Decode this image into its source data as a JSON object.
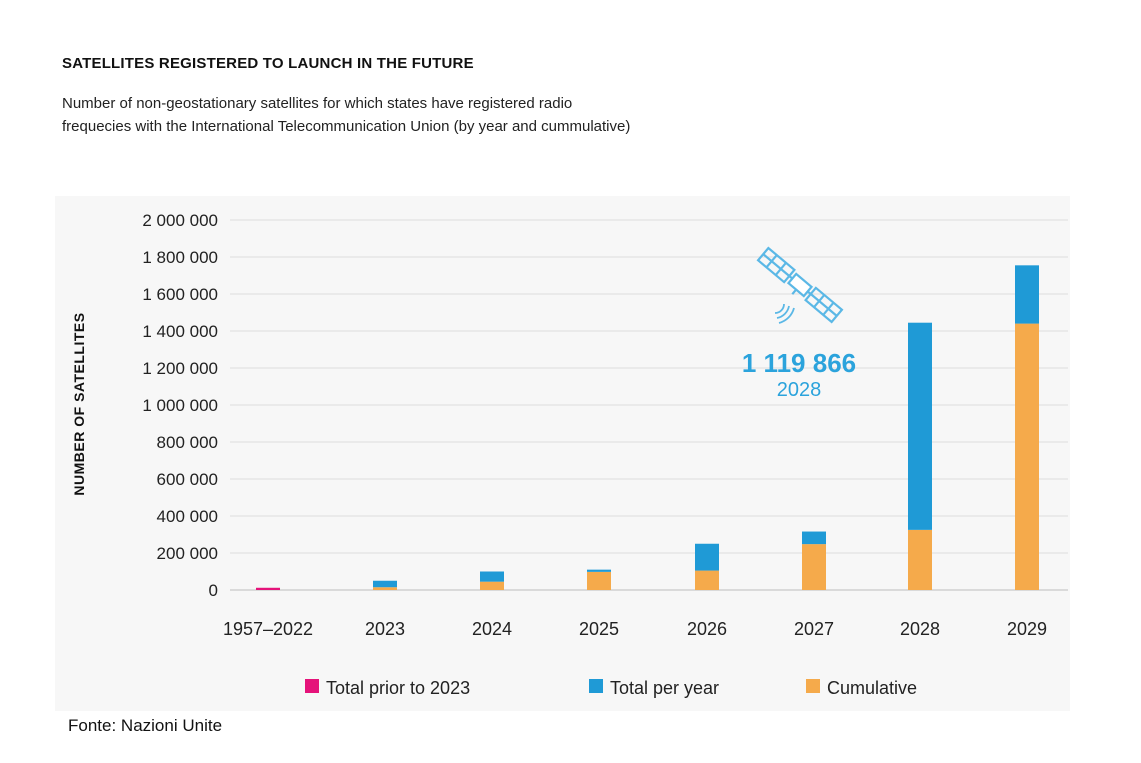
{
  "title": "SATELLITES REGISTERED TO LAUNCH IN THE FUTURE",
  "subtitle_line1": "Number of non-geostationary satellites for which states have registered radio",
  "subtitle_line2": "frequecies with the International Telecommunication Union (by year and cummulative)",
  "source": "Fonte: Nazioni Unite",
  "colors": {
    "prior": "#e5137a",
    "per_year": "#1f9ad6",
    "cumulative": "#f5aa4b"
  },
  "annotation": {
    "value": "1 119 866",
    "year": "2028",
    "icon": "satellite-icon",
    "color": "#2ba3dc"
  },
  "chart_data": {
    "type": "bar",
    "stacked": true,
    "categories": [
      "1957–2022",
      "2023",
      "2024",
      "2025",
      "2026",
      "2027",
      "2028",
      "2029"
    ],
    "series": [
      {
        "name": "Total prior to 2023",
        "key": "prior",
        "values": [
          12000,
          0,
          0,
          0,
          0,
          0,
          0,
          0
        ]
      },
      {
        "name": "Cumulative",
        "key": "cumulative",
        "values": [
          0,
          15000,
          45000,
          98000,
          105000,
          248000,
          325000,
          1440000
        ]
      },
      {
        "name": "Total per year",
        "key": "per_year",
        "values": [
          0,
          35000,
          55000,
          12000,
          145000,
          68000,
          1119866,
          315000
        ]
      }
    ],
    "ylabel": "NUMBER OF SATELLITES",
    "ylim": [
      0,
      2000000
    ],
    "yticks": [
      0,
      200000,
      400000,
      600000,
      800000,
      1000000,
      1200000,
      1400000,
      1600000,
      1800000,
      2000000
    ],
    "ytick_labels": [
      "0",
      "200 000",
      "400 000",
      "600 000",
      "800 000",
      "1 000 000",
      "1 200 000",
      "1 400 000",
      "1 600 000",
      "1 800 000",
      "2 000 000"
    ],
    "grid": true,
    "legend": {
      "placement": "bottom",
      "items": [
        {
          "label": "Total prior to 2023",
          "key": "prior"
        },
        {
          "label": "Total per year",
          "key": "per_year"
        },
        {
          "label": "Cumulative",
          "key": "cumulative"
        }
      ]
    }
  }
}
